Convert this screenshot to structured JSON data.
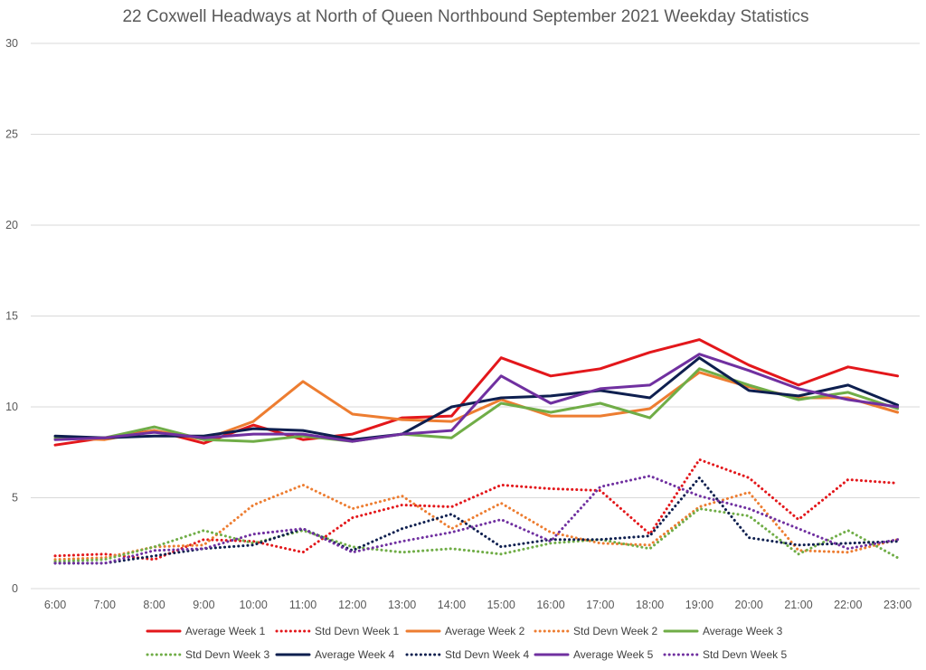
{
  "chart_data": {
    "type": "line",
    "title": "22 Coxwell Headways at North of Queen Northbound September 2021 Weekday Statistics",
    "xlabel": "",
    "ylabel": "",
    "ylim": [
      0,
      30
    ],
    "yticks": [
      "0",
      "5",
      "10",
      "15",
      "20",
      "25",
      "30"
    ],
    "grid": "horizontal",
    "legend_position": "bottom",
    "categories": [
      "6:00",
      "7:00",
      "8:00",
      "9:00",
      "10:00",
      "11:00",
      "12:00",
      "13:00",
      "14:00",
      "15:00",
      "16:00",
      "17:00",
      "18:00",
      "19:00",
      "20:00",
      "21:00",
      "22:00",
      "23:00"
    ],
    "series": [
      {
        "name": "Average Week 1",
        "color": "#e3171b",
        "style": "solid",
        "values": [
          7.9,
          8.3,
          8.7,
          8.0,
          9.0,
          8.2,
          8.5,
          9.4,
          9.5,
          12.7,
          11.7,
          12.1,
          13.0,
          13.7,
          12.3,
          11.2,
          12.2,
          11.7
        ]
      },
      {
        "name": "Std Devn Week 1",
        "color": "#e3171b",
        "style": "dotted",
        "values": [
          1.8,
          1.9,
          1.6,
          2.7,
          2.6,
          2.0,
          3.9,
          4.6,
          4.5,
          5.7,
          5.5,
          5.4,
          3.0,
          7.1,
          6.1,
          3.8,
          6.0,
          5.8
        ]
      },
      {
        "name": "Average Week 2",
        "color": "#ed7d31",
        "style": "solid",
        "values": [
          8.3,
          8.2,
          8.7,
          8.2,
          9.2,
          11.4,
          9.6,
          9.3,
          9.2,
          10.4,
          9.5,
          9.5,
          9.9,
          11.9,
          11.1,
          10.5,
          10.5,
          9.7
        ]
      },
      {
        "name": "Std Devn Week 2",
        "color": "#ed7d31",
        "style": "dotted",
        "values": [
          1.6,
          1.7,
          2.3,
          2.4,
          4.6,
          5.7,
          4.4,
          5.1,
          3.3,
          4.7,
          3.1,
          2.5,
          2.4,
          4.5,
          5.3,
          2.1,
          2.0,
          2.7
        ]
      },
      {
        "name": "Average Week 3",
        "color": "#70ad47",
        "style": "solid",
        "values": [
          8.3,
          8.3,
          8.9,
          8.2,
          8.1,
          8.4,
          8.1,
          8.5,
          8.3,
          10.2,
          9.7,
          10.2,
          9.4,
          12.1,
          11.2,
          10.4,
          10.8,
          9.9
        ]
      },
      {
        "name": "Std Devn Week 3",
        "color": "#70ad47",
        "style": "dotted",
        "values": [
          1.5,
          1.6,
          2.3,
          3.2,
          2.5,
          3.2,
          2.3,
          2.0,
          2.2,
          1.9,
          2.5,
          2.7,
          2.2,
          4.4,
          4.0,
          1.9,
          3.2,
          1.7
        ]
      },
      {
        "name": "Average Week 4",
        "color": "#0e1f4f",
        "style": "solid",
        "values": [
          8.4,
          8.3,
          8.4,
          8.4,
          8.8,
          8.7,
          8.2,
          8.5,
          10.0,
          10.5,
          10.6,
          10.9,
          10.5,
          12.7,
          10.9,
          10.6,
          11.2,
          10.1
        ]
      },
      {
        "name": "Std Devn Week 4",
        "color": "#0e1f4f",
        "style": "dotted",
        "values": [
          1.4,
          1.4,
          1.8,
          2.2,
          2.4,
          3.3,
          2.1,
          3.3,
          4.1,
          2.3,
          2.7,
          2.7,
          2.9,
          6.1,
          2.8,
          2.4,
          2.5,
          2.6
        ]
      },
      {
        "name": "Average Week 5",
        "color": "#7030a0",
        "style": "solid",
        "values": [
          8.2,
          8.3,
          8.6,
          8.3,
          8.5,
          8.5,
          8.1,
          8.5,
          8.7,
          11.7,
          10.2,
          11.0,
          11.2,
          12.9,
          12.0,
          11.0,
          10.4,
          10.0
        ]
      },
      {
        "name": "Std Devn Week 5",
        "color": "#7030a0",
        "style": "dotted",
        "values": [
          1.4,
          1.4,
          2.1,
          2.2,
          3.0,
          3.3,
          2.0,
          2.6,
          3.1,
          3.8,
          2.6,
          5.6,
          6.2,
          5.1,
          4.4,
          3.3,
          2.2,
          2.7
        ]
      }
    ]
  }
}
